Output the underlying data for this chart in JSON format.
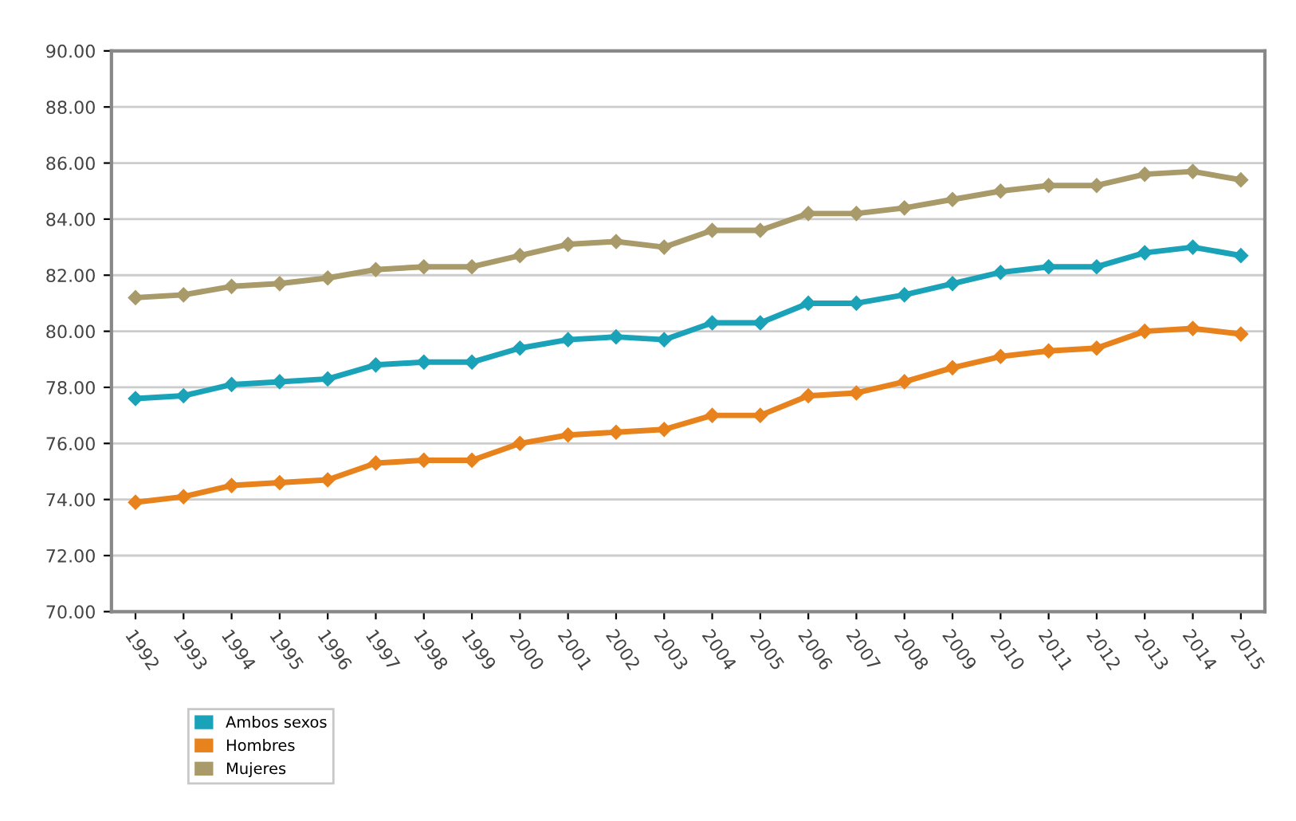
{
  "chart_data": {
    "type": "line",
    "categories": [
      "1992",
      "1993",
      "1994",
      "1995",
      "1996",
      "1997",
      "1998",
      "1999",
      "2000",
      "2001",
      "2002",
      "2003",
      "2004",
      "2005",
      "2006",
      "2007",
      "2008",
      "2009",
      "2010",
      "2011",
      "2012",
      "2013",
      "2014",
      "2015"
    ],
    "series": [
      {
        "name": "Ambos sexos",
        "color": "#1aa3b8",
        "values": [
          77.6,
          77.7,
          78.1,
          78.2,
          78.3,
          78.8,
          78.9,
          78.9,
          79.4,
          79.7,
          79.8,
          79.7,
          80.3,
          80.3,
          81.0,
          81.0,
          81.3,
          81.7,
          82.1,
          82.3,
          82.3,
          82.8,
          83.0,
          82.7
        ]
      },
      {
        "name": "Hombres",
        "color": "#e8821c",
        "values": [
          73.9,
          74.1,
          74.5,
          74.6,
          74.7,
          75.3,
          75.4,
          75.4,
          76.0,
          76.3,
          76.4,
          76.5,
          77.0,
          77.0,
          77.7,
          77.8,
          78.2,
          78.7,
          79.1,
          79.3,
          79.4,
          80.0,
          80.1,
          79.9
        ]
      },
      {
        "name": "Mujeres",
        "color": "#a99a6a",
        "values": [
          81.2,
          81.3,
          81.6,
          81.7,
          81.9,
          82.2,
          82.3,
          82.3,
          82.7,
          83.1,
          83.2,
          83.0,
          83.6,
          83.6,
          84.2,
          84.2,
          84.4,
          84.7,
          85.0,
          85.2,
          85.2,
          85.6,
          85.7,
          85.4
        ]
      }
    ],
    "ylim": [
      70,
      90
    ],
    "yticks": [
      {
        "value": 70,
        "label": "70.00"
      },
      {
        "value": 72,
        "label": "72.00"
      },
      {
        "value": 74,
        "label": "74.00"
      },
      {
        "value": 76,
        "label": "76.00"
      },
      {
        "value": 78,
        "label": "78.00"
      },
      {
        "value": 80,
        "label": "80.00"
      },
      {
        "value": 82,
        "label": "82.00"
      },
      {
        "value": 84,
        "label": "84.00"
      },
      {
        "value": 86,
        "label": "86.00"
      },
      {
        "value": 88,
        "label": "88.00"
      },
      {
        "value": 90,
        "label": "90.00"
      }
    ],
    "grid": "y",
    "legend": "bottom left",
    "marker": "diamond",
    "line_style": "solid"
  }
}
